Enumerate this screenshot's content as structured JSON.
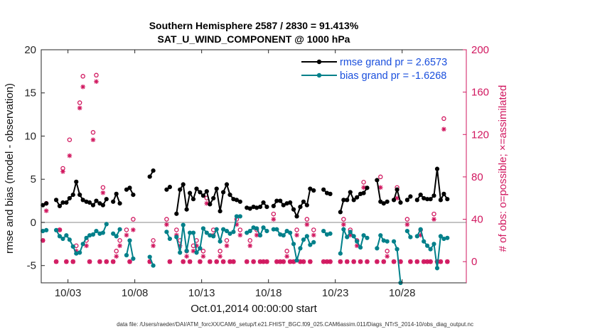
{
  "title_line1": "Southern Hemisphere 2587 / 2830 = 91.413%",
  "title_line2": "SAT_U_WIND_COMPONENT @ 1000 hPa",
  "xlabel": "Oct.01,2014 00:00:00 start",
  "footer": "data file: /Users/raeder/DAI/ATM_forcXX/CAM6_setup/f.e21.FHIST_BGC.f09_025.CAM6assim.011/Diags_NTrS_2014-10/obs_diag_output.nc",
  "colors": {
    "rmse": "#000000",
    "bias": "#00808a",
    "obs": "#d1175f",
    "legend_text": "#1a4fdd",
    "zero_line": "#b0b0b0"
  },
  "chart_data": {
    "type": "line",
    "ylabel_left": "rmse and bias (model - observation)",
    "ylabel_right": "# of obs: o=possible; ×=assimilated",
    "xlim": [
      1,
      32.8
    ],
    "ylim_left": [
      -7,
      20
    ],
    "ylim_right": [
      -20,
      200
    ],
    "x_ticks": [
      3,
      8,
      13,
      18,
      23,
      28
    ],
    "x_tick_labels": [
      "10/03",
      "10/08",
      "10/13",
      "10/18",
      "10/23",
      "10/28"
    ],
    "y_ticks_left": [
      -5,
      0,
      5,
      10,
      15,
      20
    ],
    "y_ticks_right": [
      0,
      40,
      80,
      120,
      160,
      200
    ],
    "legend": [
      "rmse grand pr = 2.6573",
      "bias grand pr = -1.6268"
    ],
    "legend_position": "top-right",
    "series": [
      {
        "name": "rmse grand pr = 2.6573",
        "x": [
          1.12,
          1.38,
          2.12,
          2.38,
          2.62,
          2.88,
          3.12,
          3.38,
          3.62,
          3.88,
          4.12,
          4.38,
          4.62,
          4.88,
          5.12,
          5.38,
          5.62,
          5.88,
          6.38,
          6.62,
          6.88,
          7.38,
          7.62,
          7.88,
          9.12,
          9.38,
          10.38,
          10.62,
          11.12,
          11.38,
          11.62,
          11.88,
          12.12,
          12.38,
          12.62,
          12.88,
          13.12,
          13.38,
          13.62,
          13.88,
          14.12,
          14.38,
          14.62,
          14.88,
          15.12,
          15.38,
          15.62,
          15.88,
          16.38,
          16.62,
          16.88,
          17.12,
          17.38,
          17.62,
          17.88,
          18.38,
          18.62,
          18.88,
          19.12,
          19.38,
          19.62,
          19.88,
          20.12,
          20.38,
          20.62,
          20.88,
          21.12,
          21.38,
          22.12,
          22.38,
          22.62,
          23.38,
          23.62,
          23.88,
          24.12,
          24.38,
          24.62,
          24.88,
          25.12,
          25.38,
          26.12,
          26.38,
          26.62,
          26.88,
          27.38,
          27.62,
          27.88,
          28.38,
          28.62,
          29.12,
          29.38,
          29.62,
          29.88,
          30.12,
          30.38,
          30.62,
          30.88,
          31.12,
          31.38
        ],
        "values": [
          2.0,
          2.2,
          2.6,
          1.9,
          2.3,
          2.3,
          2.8,
          3.2,
          4.7,
          3.2,
          2.6,
          2.4,
          2.3,
          2.0,
          2.5,
          2.2,
          2.0,
          2.7,
          2.4,
          3.3,
          2.2,
          3.8,
          4.0,
          3.2,
          5.3,
          6.0,
          3.8,
          4.1,
          1.0,
          3.8,
          4.4,
          1.5,
          3.4,
          2.7,
          3.9,
          3.5,
          3.1,
          3.6,
          2.1,
          2.8,
          3.9,
          1.3,
          3.5,
          4.4,
          3.2,
          2.7,
          2.6,
          2.4,
          1.7,
          1.6,
          1.8,
          1.7,
          1.8,
          2.3,
          1.8,
          1.9,
          2.5,
          2.5,
          2.0,
          2.2,
          2.3,
          1.5,
          0.7,
          1.8,
          2.4,
          2.0,
          3.9,
          3.7,
          3.8,
          3.4,
          3.3,
          1.2,
          2.6,
          2.6,
          3.5,
          2.6,
          2.9,
          3.3,
          3.4,
          4.0,
          4.9,
          2.4,
          2.2,
          2.4,
          2.6,
          3.8,
          2.3,
          2.6,
          3.0,
          2.6,
          3.2,
          2.8,
          2.7,
          2.7,
          3.1,
          6.2,
          2.6,
          3.3,
          2.7
        ]
      },
      {
        "name": "bias grand pr = -1.6268",
        "x": [
          1.12,
          1.38,
          2.12,
          2.38,
          2.62,
          2.88,
          3.12,
          3.38,
          3.62,
          3.88,
          4.12,
          4.38,
          4.62,
          4.88,
          5.12,
          5.38,
          5.62,
          5.88,
          6.38,
          6.62,
          6.88,
          7.38,
          7.62,
          7.88,
          9.12,
          9.38,
          10.38,
          10.62,
          11.12,
          11.38,
          11.62,
          11.88,
          12.12,
          12.38,
          12.62,
          12.88,
          13.12,
          13.38,
          13.62,
          13.88,
          14.12,
          14.38,
          14.62,
          14.88,
          15.12,
          15.38,
          15.62,
          15.88,
          16.38,
          16.62,
          16.88,
          17.12,
          17.38,
          17.62,
          17.88,
          18.38,
          18.62,
          18.88,
          19.12,
          19.38,
          19.62,
          19.88,
          20.12,
          20.38,
          20.62,
          20.88,
          21.12,
          21.38,
          22.12,
          22.38,
          22.62,
          23.38,
          23.62,
          23.88,
          24.12,
          24.38,
          24.62,
          24.88,
          25.12,
          25.38,
          26.12,
          26.38,
          26.62,
          26.88,
          27.38,
          27.62,
          27.88,
          28.38,
          28.62,
          29.12,
          29.38,
          29.62,
          29.88,
          30.12,
          30.38,
          30.62,
          30.88,
          31.12,
          31.38
        ],
        "values": [
          -1.0,
          -0.9,
          -0.9,
          -1.6,
          -1.9,
          -1.5,
          -2.0,
          -2.8,
          -3.6,
          -3.5,
          -2.5,
          -1.8,
          -1.5,
          -1.4,
          -1.0,
          -1.3,
          -1.2,
          -0.2,
          -1.3,
          -1.6,
          -0.8,
          -3.8,
          -2.1,
          -4.2,
          -4.0,
          -5.0,
          -1.1,
          -1.9,
          -1.7,
          -3.5,
          -0.3,
          -3.3,
          -1.2,
          -1.2,
          -3.5,
          -3.0,
          -0.7,
          -1.2,
          -1.5,
          -1.6,
          -0.8,
          -2.2,
          -0.8,
          -1.0,
          -1.3,
          -1.1,
          0.7,
          0.7,
          -1.2,
          -1.0,
          -0.6,
          -0.7,
          -1.5,
          -0.6,
          -1.0,
          -0.8,
          -0.8,
          -1.4,
          -1.5,
          -1.0,
          -1.2,
          -2.5,
          -4.4,
          -3.0,
          -2.0,
          -1.6,
          -2.6,
          -2.3,
          -1.0,
          -1.4,
          -1.3,
          -3.6,
          -0.8,
          -1.7,
          -1.1,
          -1.6,
          -2.2,
          -2.9,
          -1.5,
          -1.8,
          -3.0,
          -1.5,
          -2.1,
          -2.2,
          -2.2,
          -3.1,
          -7.0,
          -1.0,
          -1.7,
          -1.6,
          -0.8,
          -2.2,
          -2.7,
          -3.1,
          -2.5,
          -5.3,
          -1.6,
          -1.9,
          -1.8
        ]
      },
      {
        "name": "possible",
        "x": [
          1.12,
          1.38,
          2.12,
          2.38,
          2.62,
          2.88,
          3.12,
          3.38,
          3.62,
          3.88,
          4.12,
          4.38,
          4.62,
          4.88,
          5.12,
          5.38,
          5.62,
          5.88,
          6.38,
          6.62,
          6.88,
          7.38,
          7.62,
          7.88,
          9.12,
          9.38,
          10.38,
          10.62,
          11.12,
          11.38,
          11.62,
          11.88,
          12.12,
          12.38,
          12.62,
          12.88,
          13.12,
          13.38,
          13.62,
          13.88,
          14.12,
          14.38,
          14.62,
          14.88,
          15.12,
          15.38,
          15.62,
          15.88,
          16.38,
          16.62,
          16.88,
          17.12,
          17.38,
          17.62,
          17.88,
          18.38,
          18.62,
          18.88,
          19.12,
          19.38,
          19.62,
          19.88,
          20.12,
          20.38,
          20.62,
          20.88,
          21.12,
          21.38,
          22.12,
          22.38,
          22.62,
          23.38,
          23.62,
          23.88,
          24.12,
          24.38,
          24.62,
          24.88,
          25.12,
          25.38,
          26.12,
          26.38,
          26.62,
          26.88,
          27.38,
          27.62,
          27.88,
          28.38,
          28.62,
          29.12,
          29.38,
          29.62,
          29.88,
          30.12,
          30.38,
          30.62,
          30.88,
          31.12,
          31.38
        ],
        "values": [
          20,
          55,
          0,
          30,
          88,
          0,
          115,
          0,
          15,
          150,
          175,
          20,
          0,
          122,
          176,
          0,
          70,
          0,
          0,
          10,
          20,
          30,
          0,
          40,
          0,
          20,
          40,
          0,
          30,
          20,
          0,
          10,
          0,
          15,
          20,
          0,
          10,
          60,
          0,
          30,
          0,
          10,
          0,
          20,
          0,
          0,
          40,
          30,
          0,
          20,
          0,
          30,
          0,
          0,
          0,
          45,
          0,
          0,
          0,
          10,
          0,
          0,
          30,
          0,
          0,
          40,
          0,
          30,
          0,
          0,
          0,
          0,
          40,
          0,
          30,
          0,
          20,
          0,
          75,
          0,
          0,
          80,
          0,
          10,
          0,
          70,
          0,
          40,
          0,
          0,
          30,
          0,
          0,
          0,
          45,
          0,
          0,
          135,
          0
        ]
      },
      {
        "name": "assimilated",
        "x": [
          1.12,
          1.38,
          2.12,
          2.38,
          2.62,
          2.88,
          3.12,
          3.38,
          3.62,
          3.88,
          4.12,
          4.38,
          4.62,
          4.88,
          5.12,
          5.38,
          5.62,
          5.88,
          6.38,
          6.62,
          6.88,
          7.38,
          7.62,
          7.88,
          9.12,
          9.38,
          10.38,
          10.62,
          11.12,
          11.38,
          11.62,
          11.88,
          12.12,
          12.38,
          12.62,
          12.88,
          13.12,
          13.38,
          13.62,
          13.88,
          14.12,
          14.38,
          14.62,
          14.88,
          15.12,
          15.38,
          15.62,
          15.88,
          16.38,
          16.62,
          16.88,
          17.12,
          17.38,
          17.62,
          17.88,
          18.38,
          18.62,
          18.88,
          19.12,
          19.38,
          19.62,
          19.88,
          20.12,
          20.38,
          20.62,
          20.88,
          21.12,
          21.38,
          22.12,
          22.38,
          22.62,
          23.38,
          23.62,
          23.88,
          24.12,
          24.38,
          24.62,
          24.88,
          25.12,
          25.38,
          26.12,
          26.38,
          26.62,
          26.88,
          27.38,
          27.62,
          27.88,
          28.38,
          28.62,
          29.12,
          29.38,
          29.62,
          29.88,
          30.12,
          30.38,
          30.62,
          30.88,
          31.12,
          31.38
        ],
        "values": [
          20,
          48,
          0,
          30,
          85,
          0,
          100,
          0,
          10,
          145,
          165,
          15,
          0,
          115,
          170,
          0,
          65,
          0,
          0,
          5,
          15,
          25,
          0,
          30,
          0,
          15,
          35,
          0,
          25,
          15,
          0,
          5,
          0,
          10,
          15,
          0,
          5,
          55,
          0,
          25,
          0,
          5,
          0,
          15,
          0,
          0,
          35,
          25,
          0,
          15,
          0,
          25,
          0,
          0,
          0,
          40,
          0,
          0,
          0,
          5,
          0,
          0,
          25,
          0,
          0,
          35,
          0,
          25,
          0,
          0,
          0,
          0,
          35,
          0,
          25,
          0,
          15,
          0,
          70,
          0,
          0,
          70,
          0,
          5,
          0,
          60,
          0,
          35,
          0,
          0,
          25,
          0,
          0,
          0,
          40,
          0,
          0,
          125,
          0
        ]
      }
    ]
  }
}
